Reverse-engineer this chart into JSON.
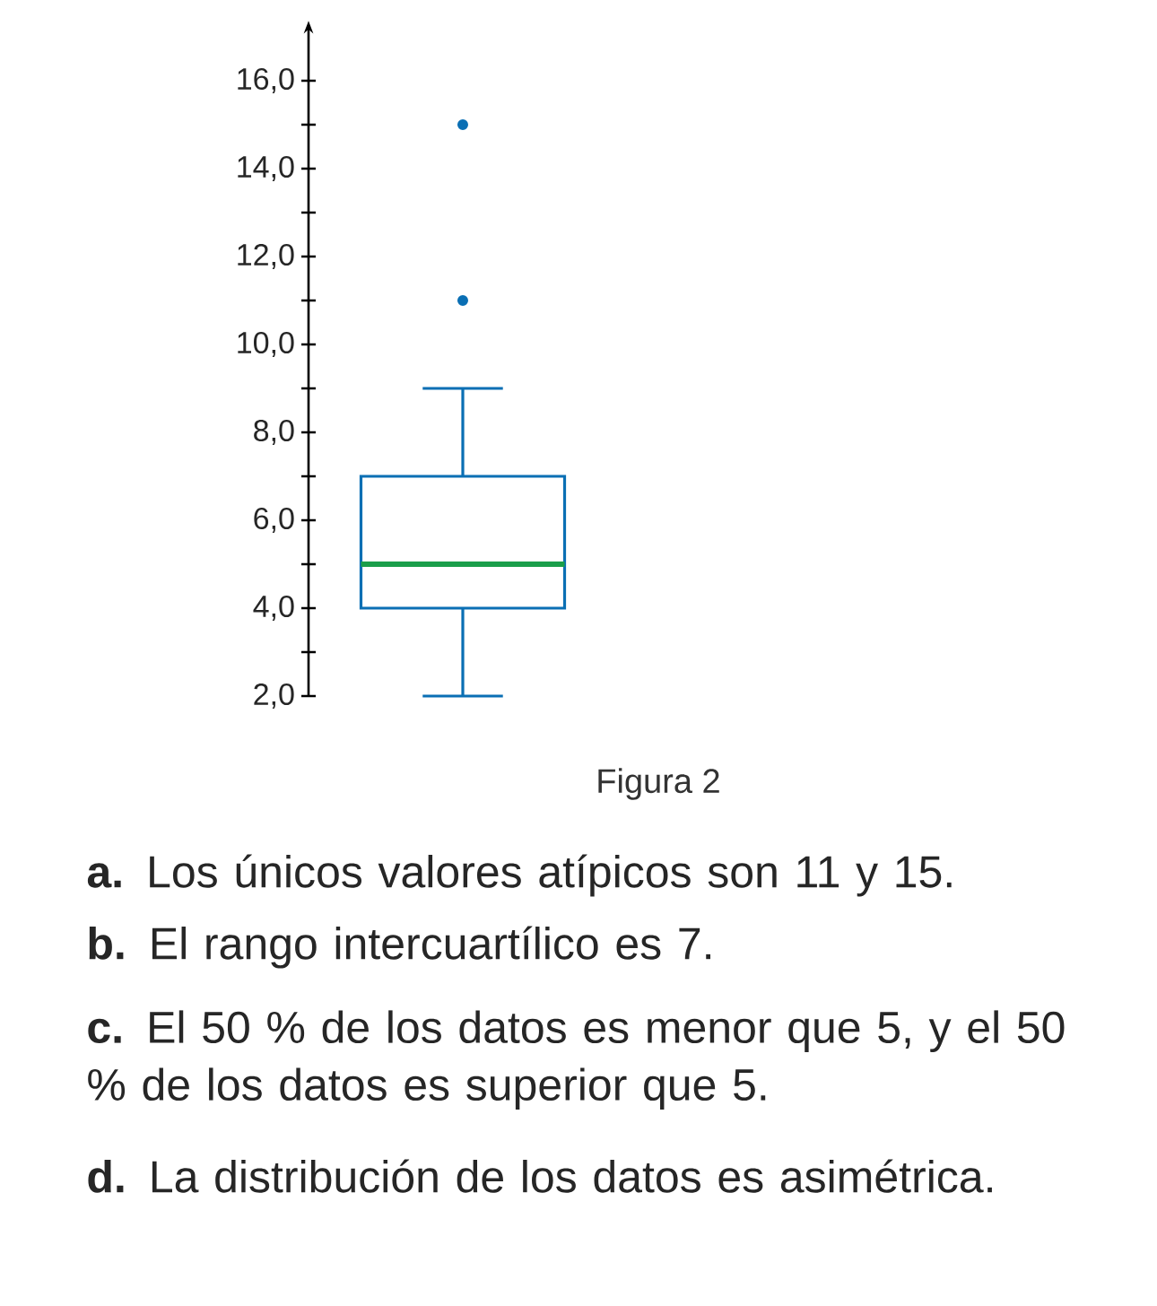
{
  "chart_data": {
    "type": "box",
    "categories": [
      null
    ],
    "series": [
      {
        "color": "#0a6fb4",
        "boxes": [
          {
            "low": 2,
            "q1": 4,
            "median": 5,
            "q3": 7,
            "high": 9,
            "outliers": [
              11,
              15
            ]
          }
        ]
      }
    ],
    "ylim": [
      2,
      17.2
    ],
    "yticks": [
      {
        "value": 2,
        "label": "2,0"
      },
      {
        "value": 4,
        "label": "4,0"
      },
      {
        "value": 6,
        "label": "6,0"
      },
      {
        "value": 8,
        "label": "8,0"
      },
      {
        "value": 10,
        "label": "10,0"
      },
      {
        "value": 12,
        "label": "12,0"
      },
      {
        "value": 14,
        "label": "14,0"
      },
      {
        "value": 16,
        "label": "16,0"
      }
    ],
    "tick_labels": "y",
    "annotations": [
      "Figura 2",
      "**a.** Los únicos valores atípicos son 11 y 15.",
      "**b.** El rango intercuartílico es 7.",
      "**c.** El 50 % de los datos es menor que 5, y el 50 % de los datos es superior que 5.",
      "**d.** La distribución de los datos es asimétrica."
    ]
  }
}
